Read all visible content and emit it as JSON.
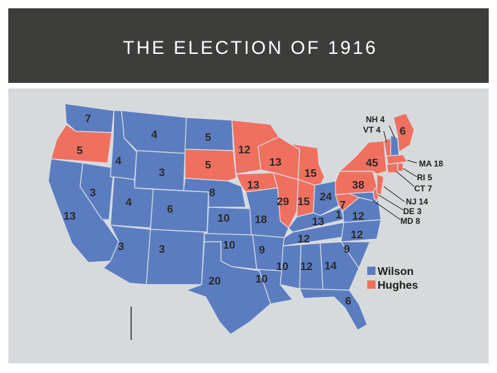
{
  "slide": {
    "title": "THE ELECTION OF 1916"
  },
  "colors": {
    "wilson": "#5b7dc0",
    "hughes": "#f0705f",
    "title_bar": "#3d3d3b",
    "map_bg": "#d7dadb"
  },
  "legend": [
    {
      "label": "Wilson",
      "color": "#5b7dc0"
    },
    {
      "label": "Hughes",
      "color": "#f0705f"
    }
  ],
  "map_labels": {
    "wa": "7",
    "or": "5",
    "ca": "13",
    "id": "4",
    "mt": "4",
    "nv": "3",
    "ut": "4",
    "wy": "3",
    "az": "3",
    "nm": "3",
    "co": "6",
    "nd": "5",
    "sd": "5",
    "ne": "8",
    "ks": "10",
    "ok": "10",
    "tx": "20",
    "mn": "12",
    "ia": "13",
    "mo": "18",
    "ar": "9",
    "la": "10",
    "wi": "13",
    "il": "29",
    "mi": "15",
    "in": "15",
    "oh": "24",
    "ky": "13",
    "tn": "12",
    "ms": "10",
    "al": "12",
    "ga": "14",
    "fl": "6",
    "wv": "7",
    "va": "12",
    "nc": "12",
    "sc": "9",
    "pa": "38",
    "ny": "45",
    "me": "6"
  },
  "callouts": {
    "nh": "NH 4",
    "vt": "VT 4",
    "ma": "MA 18",
    "ri": "RI 5",
    "ct": "CT 7",
    "nj": "NJ 14",
    "de": "DE 3",
    "md": "MD 8",
    "md_alt": "1"
  }
}
